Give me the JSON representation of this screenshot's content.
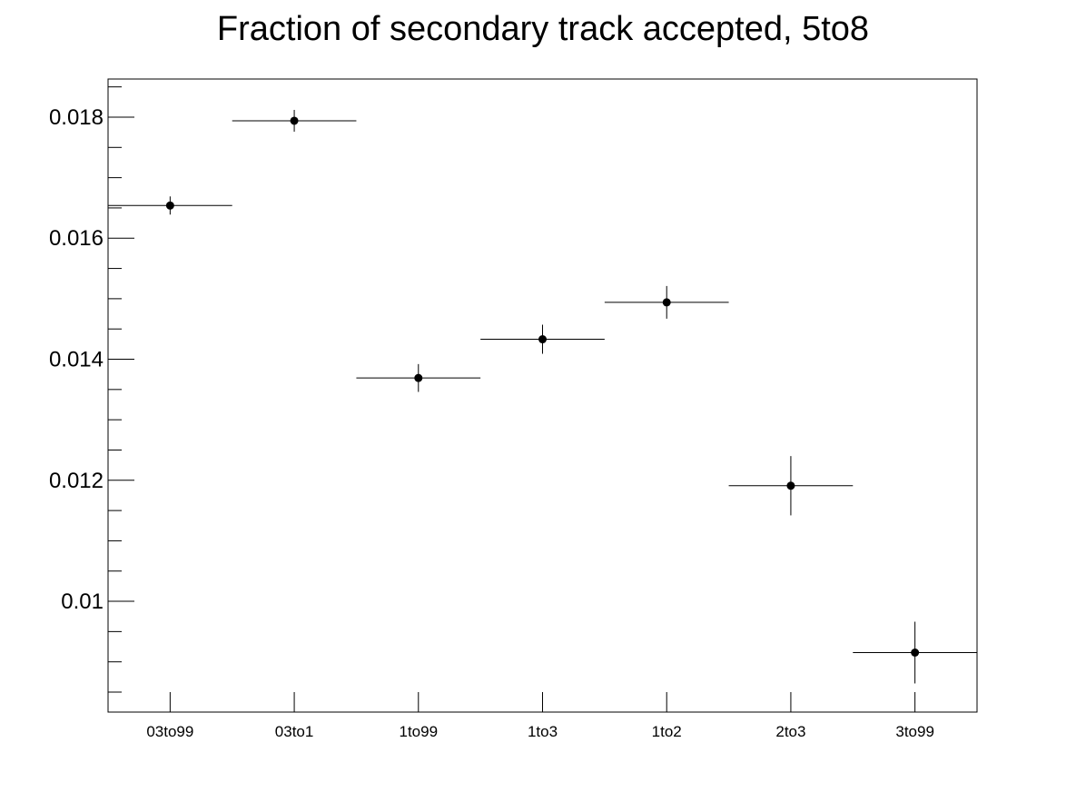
{
  "chart_data": {
    "type": "scatter",
    "title": "Fraction of secondary track accepted, 5to8",
    "xlabel": "",
    "ylabel": "",
    "categories": [
      "03to99",
      "03to1",
      "1to99",
      "1to3",
      "1to2",
      "2to3",
      "3to99"
    ],
    "values": [
      0.01654,
      0.01794,
      0.01369,
      0.01433,
      0.01494,
      0.01191,
      0.009153
    ],
    "errors": [
      0.00015,
      0.00018,
      0.00023,
      0.00024,
      0.00027,
      0.00049,
      0.00051
    ],
    "ylim": [
      0.00817,
      0.01863
    ],
    "yticks": [
      {
        "value": 0.01,
        "label": "0.01"
      },
      {
        "value": 0.012,
        "label": "0.012"
      },
      {
        "value": 0.014,
        "label": "0.014"
      },
      {
        "value": 0.016,
        "label": "0.016"
      },
      {
        "value": 0.018,
        "label": "0.018"
      }
    ],
    "grid": false,
    "marker_color": "#000000"
  }
}
